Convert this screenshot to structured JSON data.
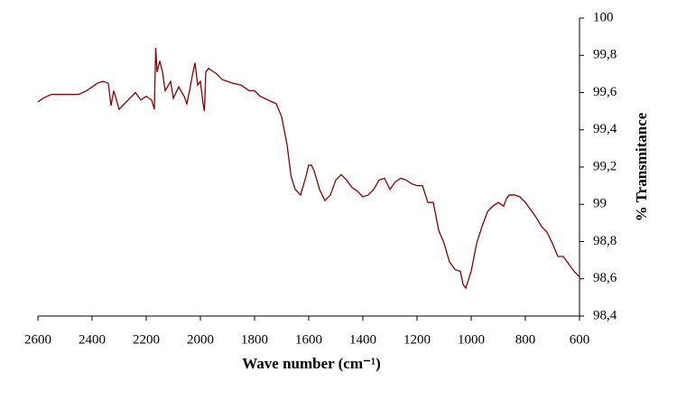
{
  "chart_data": {
    "type": "line",
    "xlabel": "Wave number (cm⁻¹)",
    "ylabel": "% Transmitance",
    "xlim": [
      2600,
      600
    ],
    "xticks": [
      2600,
      2400,
      2200,
      2000,
      1800,
      1600,
      1400,
      1200,
      1000,
      800,
      600
    ],
    "ylim": [
      98.4,
      100
    ],
    "yticks": [
      {
        "value": 98.4,
        "label": "98,4"
      },
      {
        "value": 98.6,
        "label": "98,6"
      },
      {
        "value": 98.8,
        "label": "98,8"
      },
      99,
      {
        "value": 99.2,
        "label": "99,2"
      },
      {
        "value": 99.4,
        "label": "99,4"
      },
      {
        "value": 99.6,
        "label": "99,6"
      },
      {
        "value": 99.8,
        "label": "99,8"
      },
      100
    ],
    "grid": false,
    "series": [
      {
        "color": "#8b0000",
        "x": [
          2600,
          2580,
          2550,
          2500,
          2450,
          2420,
          2400,
          2380,
          2360,
          2340,
          2330,
          2320,
          2300,
          2280,
          2260,
          2240,
          2220,
          2200,
          2180,
          2170,
          2165,
          2160,
          2150,
          2140,
          2130,
          2110,
          2100,
          2080,
          2060,
          2050,
          2040,
          2030,
          2020,
          2010,
          2000,
          1990,
          1985,
          1980,
          1970,
          1960,
          1940,
          1920,
          1900,
          1880,
          1850,
          1820,
          1800,
          1780,
          1750,
          1720,
          1700,
          1680,
          1665,
          1650,
          1630,
          1610,
          1600,
          1590,
          1580,
          1560,
          1540,
          1520,
          1500,
          1480,
          1460,
          1440,
          1420,
          1400,
          1380,
          1360,
          1340,
          1320,
          1300,
          1280,
          1260,
          1240,
          1220,
          1200,
          1180,
          1160,
          1140,
          1120,
          1100,
          1080,
          1060,
          1040,
          1030,
          1020,
          1000,
          980,
          960,
          940,
          920,
          900,
          880,
          870,
          860,
          840,
          820,
          800,
          780,
          760,
          740,
          720,
          700,
          680,
          660,
          640,
          620,
          600
        ],
        "values": [
          99.55,
          99.57,
          99.59,
          99.59,
          99.59,
          99.61,
          99.63,
          99.65,
          99.66,
          99.65,
          99.53,
          99.61,
          99.51,
          99.54,
          99.57,
          99.6,
          99.56,
          99.58,
          99.56,
          99.51,
          99.84,
          99.71,
          99.77,
          99.71,
          99.61,
          99.66,
          99.57,
          99.63,
          99.58,
          99.54,
          99.61,
          99.69,
          99.76,
          99.64,
          99.66,
          99.54,
          99.5,
          99.71,
          99.73,
          99.72,
          99.7,
          99.67,
          99.66,
          99.65,
          99.64,
          99.61,
          99.61,
          99.58,
          99.56,
          99.54,
          99.47,
          99.32,
          99.15,
          99.08,
          99.05,
          99.15,
          99.21,
          99.21,
          99.18,
          99.08,
          99.02,
          99.05,
          99.13,
          99.16,
          99.13,
          99.09,
          99.07,
          99.04,
          99.05,
          99.08,
          99.13,
          99.14,
          99.08,
          99.12,
          99.14,
          99.13,
          99.11,
          99.1,
          99.1,
          99.01,
          99.01,
          98.86,
          98.79,
          98.69,
          98.65,
          98.64,
          98.57,
          98.55,
          98.64,
          98.79,
          98.88,
          98.96,
          98.99,
          99.01,
          98.99,
          99.03,
          99.05,
          99.05,
          99.04,
          99.01,
          98.97,
          98.93,
          98.88,
          98.85,
          98.79,
          98.72,
          98.72,
          98.68,
          98.64,
          98.61
        ]
      }
    ]
  }
}
